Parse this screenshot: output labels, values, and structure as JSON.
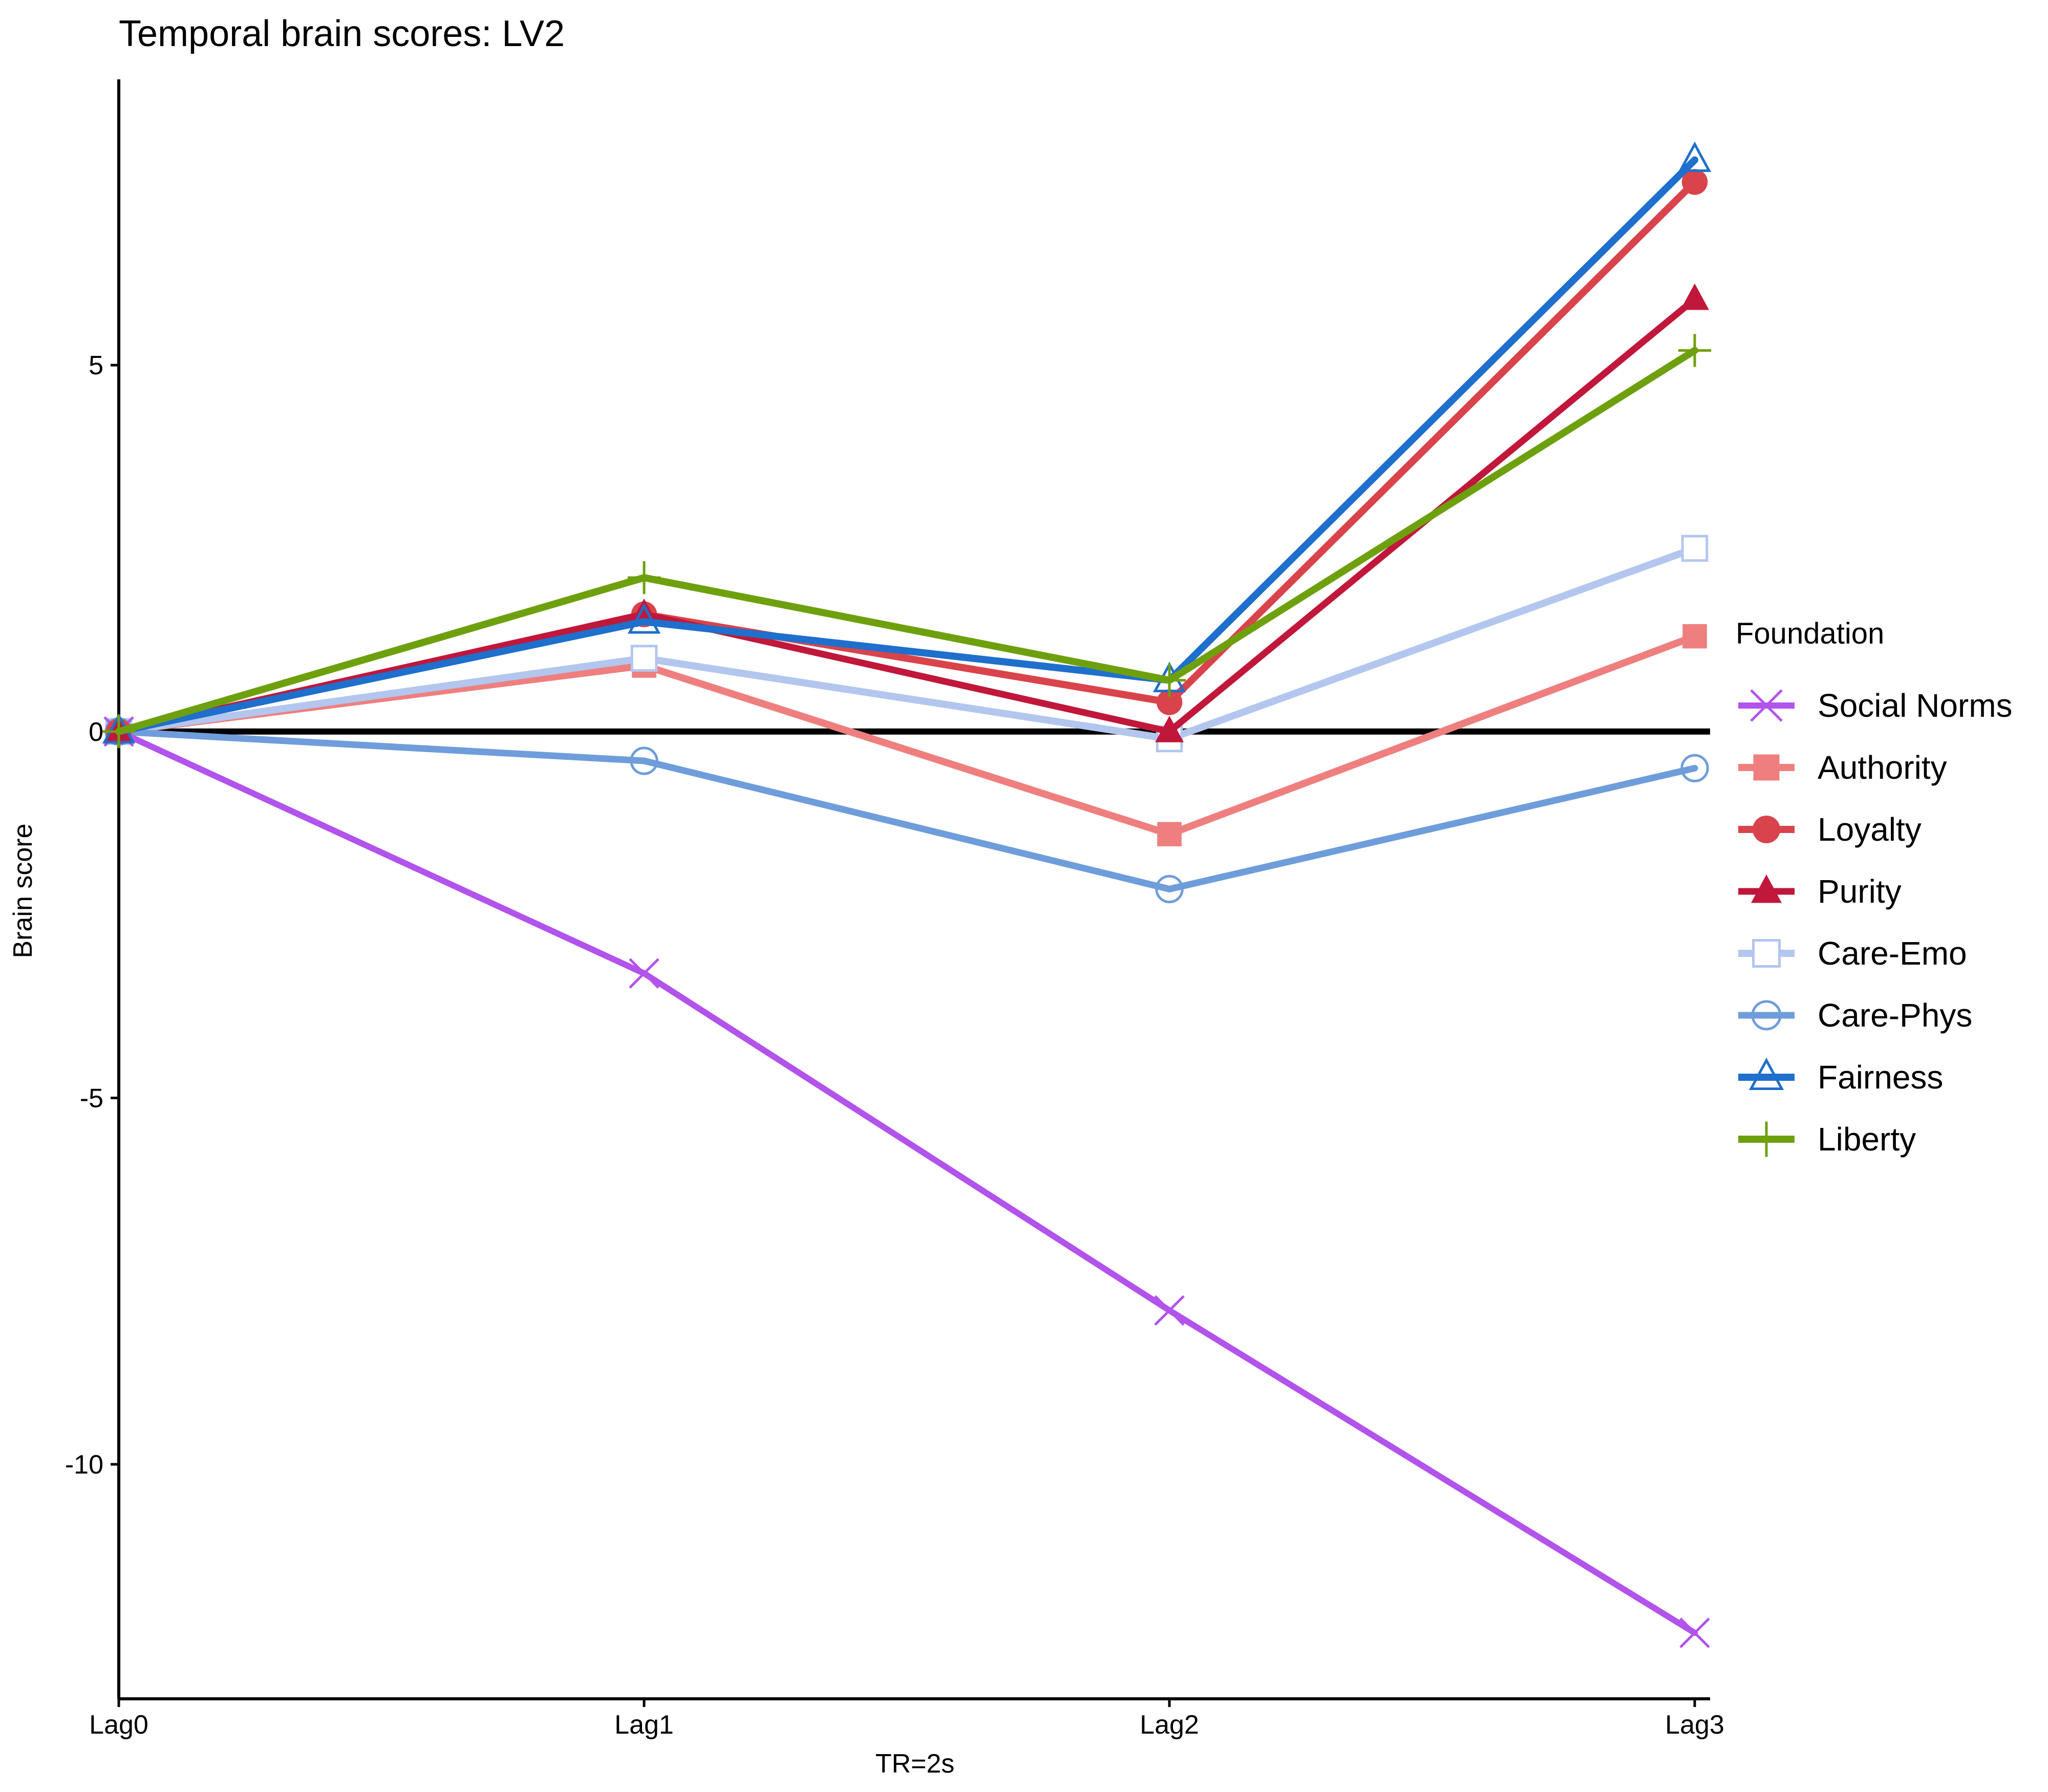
{
  "chart_data": {
    "type": "line",
    "title": "Temporal brain scores: LV2",
    "xlabel": "TR=2s",
    "ylabel": "Brain score",
    "categories": [
      "Lag0",
      "Lag1",
      "Lag2",
      "Lag3"
    ],
    "ylim": [
      -13.2,
      8.9
    ],
    "yticks": [
      -10,
      -5,
      0,
      5
    ],
    "ytick_labels": [
      "-10",
      "-5",
      "0",
      "5"
    ],
    "reference_line": 0,
    "grid": false,
    "legend": {
      "title": "Foundation",
      "position": "right"
    },
    "series": [
      {
        "name": "Social Norms",
        "color": "#b253ec",
        "marker": "x",
        "values": [
          0,
          -3.3,
          -7.9,
          -12.3
        ]
      },
      {
        "name": "Authority",
        "color": "#ef7f7f",
        "marker": "square-filled",
        "values": [
          0,
          0.9,
          -1.4,
          1.3
        ]
      },
      {
        "name": "Loyalty",
        "color": "#d9434b",
        "marker": "circle-filled",
        "values": [
          0,
          1.6,
          0.4,
          7.5
        ]
      },
      {
        "name": "Purity",
        "color": "#c0173b",
        "marker": "triangle-filled",
        "values": [
          0,
          1.6,
          0.0,
          5.9
        ]
      },
      {
        "name": "Care-Emo",
        "color": "#b3c6ee",
        "marker": "square-open",
        "values": [
          0,
          1.0,
          -0.1,
          2.5
        ]
      },
      {
        "name": "Care-Phys",
        "color": "#6f9ddb",
        "marker": "circle-open",
        "values": [
          0,
          -0.4,
          -2.15,
          -0.5
        ]
      },
      {
        "name": "Fairness",
        "color": "#1f6fcc",
        "marker": "triangle-open",
        "values": [
          0,
          1.5,
          0.7,
          7.8
        ]
      },
      {
        "name": "Liberty",
        "color": "#6ea00e",
        "marker": "plus",
        "values": [
          0,
          2.1,
          0.7,
          5.2
        ]
      }
    ]
  }
}
